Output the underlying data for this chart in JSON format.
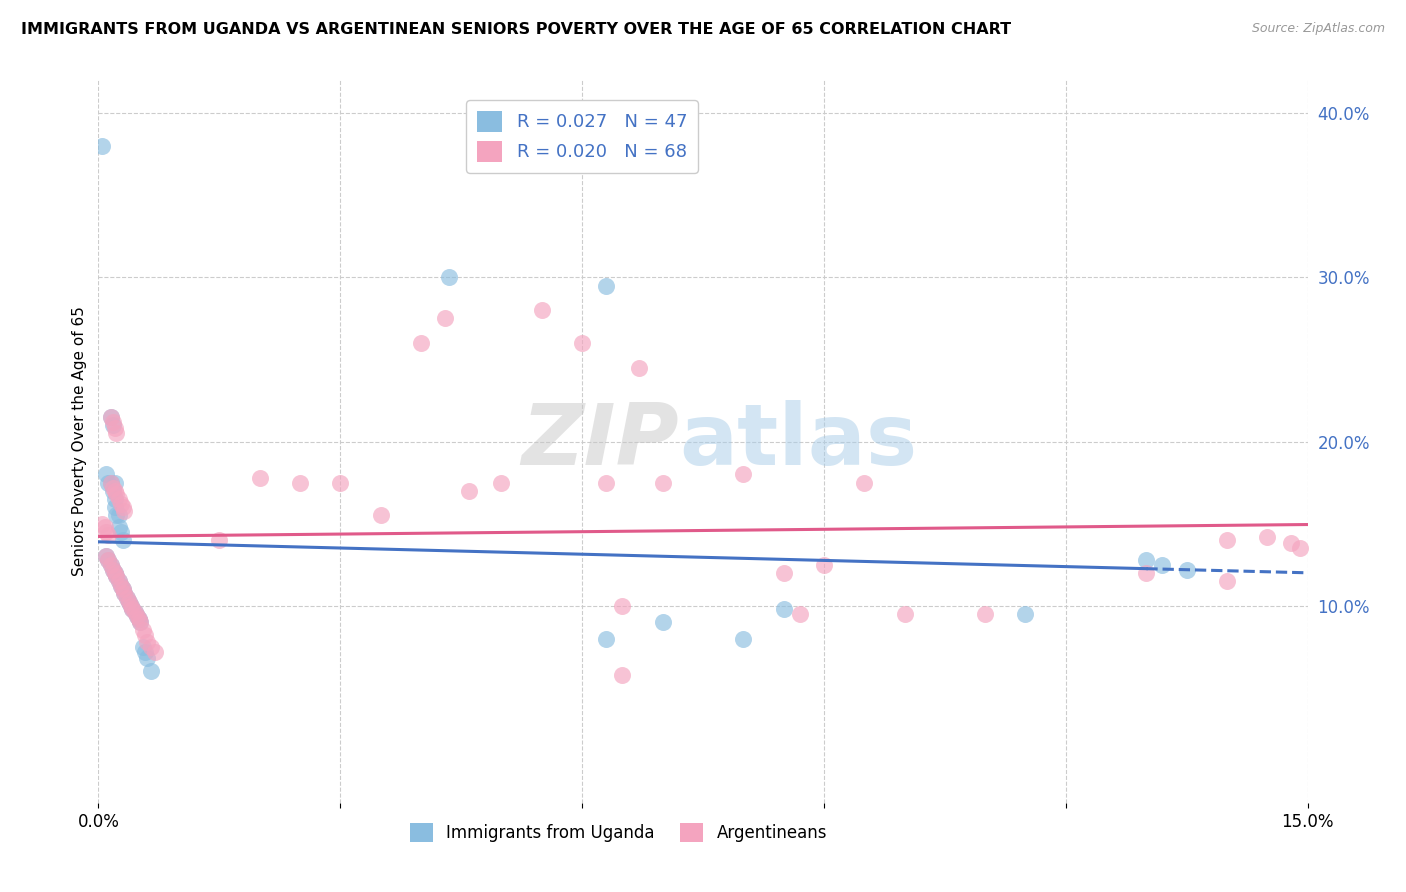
{
  "title": "IMMIGRANTS FROM UGANDA VS ARGENTINEAN SENIORS POVERTY OVER THE AGE OF 65 CORRELATION CHART",
  "source": "Source: ZipAtlas.com",
  "ylabel": "Seniors Poverty Over the Age of 65",
  "xlim": [
    0,
    0.15
  ],
  "ylim": [
    -0.02,
    0.42
  ],
  "xtick_positions": [
    0.0,
    0.03,
    0.06,
    0.09,
    0.12,
    0.15
  ],
  "xtick_labels": [
    "0.0%",
    "",
    "",
    "",
    "",
    "15.0%"
  ],
  "yticks_right": [
    0.1,
    0.2,
    0.3,
    0.4
  ],
  "ytick_right_labels": [
    "10.0%",
    "20.0%",
    "30.0%",
    "40.0%"
  ],
  "legend_r1": "R = 0.027",
  "legend_n1": "N = 47",
  "legend_r2": "R = 0.020",
  "legend_n2": "N = 68",
  "color_blue": "#8abde0",
  "color_pink": "#f4a4bf",
  "color_blue_line": "#4472c4",
  "color_pink_line": "#e05a8a",
  "watermark_zip": "ZIP",
  "watermark_atlas": "atlas",
  "scatter_blue": [
    [
      0.0005,
      0.38
    ],
    [
      0.001,
      0.18
    ],
    [
      0.0012,
      0.175
    ],
    [
      0.0015,
      0.215
    ],
    [
      0.0018,
      0.21
    ],
    [
      0.0015,
      0.175
    ],
    [
      0.0018,
      0.17
    ],
    [
      0.002,
      0.175
    ],
    [
      0.002,
      0.165
    ],
    [
      0.002,
      0.16
    ],
    [
      0.0022,
      0.155
    ],
    [
      0.0025,
      0.155
    ],
    [
      0.0025,
      0.148
    ],
    [
      0.0028,
      0.145
    ],
    [
      0.003,
      0.14
    ],
    [
      0.001,
      0.13
    ],
    [
      0.0012,
      0.128
    ],
    [
      0.0015,
      0.125
    ],
    [
      0.0018,
      0.122
    ],
    [
      0.002,
      0.12
    ],
    [
      0.0022,
      0.118
    ],
    [
      0.0025,
      0.115
    ],
    [
      0.0028,
      0.112
    ],
    [
      0.003,
      0.11
    ],
    [
      0.0032,
      0.108
    ],
    [
      0.0035,
      0.105
    ],
    [
      0.0038,
      0.102
    ],
    [
      0.004,
      0.1
    ],
    [
      0.0042,
      0.098
    ],
    [
      0.0045,
      0.096
    ],
    [
      0.0048,
      0.094
    ],
    [
      0.005,
      0.092
    ],
    [
      0.0052,
      0.09
    ],
    [
      0.0055,
      0.075
    ],
    [
      0.0058,
      0.072
    ],
    [
      0.006,
      0.068
    ],
    [
      0.0065,
      0.06
    ],
    [
      0.0435,
      0.3
    ],
    [
      0.063,
      0.295
    ],
    [
      0.063,
      0.08
    ],
    [
      0.07,
      0.09
    ],
    [
      0.08,
      0.08
    ],
    [
      0.085,
      0.098
    ],
    [
      0.115,
      0.095
    ],
    [
      0.13,
      0.128
    ],
    [
      0.132,
      0.125
    ],
    [
      0.135,
      0.122
    ]
  ],
  "scatter_pink": [
    [
      0.0005,
      0.15
    ],
    [
      0.0008,
      0.148
    ],
    [
      0.001,
      0.145
    ],
    [
      0.0012,
      0.143
    ],
    [
      0.0015,
      0.215
    ],
    [
      0.0018,
      0.212
    ],
    [
      0.002,
      0.208
    ],
    [
      0.0022,
      0.205
    ],
    [
      0.0015,
      0.175
    ],
    [
      0.0018,
      0.172
    ],
    [
      0.002,
      0.17
    ],
    [
      0.0022,
      0.168
    ],
    [
      0.0025,
      0.165
    ],
    [
      0.0028,
      0.162
    ],
    [
      0.003,
      0.16
    ],
    [
      0.0032,
      0.158
    ],
    [
      0.001,
      0.13
    ],
    [
      0.0012,
      0.128
    ],
    [
      0.0015,
      0.125
    ],
    [
      0.0018,
      0.122
    ],
    [
      0.002,
      0.12
    ],
    [
      0.0022,
      0.118
    ],
    [
      0.0025,
      0.115
    ],
    [
      0.0028,
      0.112
    ],
    [
      0.003,
      0.11
    ],
    [
      0.0032,
      0.108
    ],
    [
      0.0035,
      0.105
    ],
    [
      0.0038,
      0.102
    ],
    [
      0.004,
      0.1
    ],
    [
      0.0042,
      0.098
    ],
    [
      0.0045,
      0.096
    ],
    [
      0.0048,
      0.094
    ],
    [
      0.005,
      0.092
    ],
    [
      0.0052,
      0.09
    ],
    [
      0.0055,
      0.085
    ],
    [
      0.0058,
      0.082
    ],
    [
      0.006,
      0.078
    ],
    [
      0.0065,
      0.075
    ],
    [
      0.007,
      0.072
    ],
    [
      0.015,
      0.14
    ],
    [
      0.02,
      0.178
    ],
    [
      0.025,
      0.175
    ],
    [
      0.03,
      0.175
    ],
    [
      0.035,
      0.155
    ],
    [
      0.04,
      0.26
    ],
    [
      0.043,
      0.275
    ],
    [
      0.046,
      0.17
    ],
    [
      0.05,
      0.175
    ],
    [
      0.055,
      0.28
    ],
    [
      0.06,
      0.26
    ],
    [
      0.063,
      0.175
    ],
    [
      0.065,
      0.1
    ],
    [
      0.065,
      0.058
    ],
    [
      0.067,
      0.245
    ],
    [
      0.07,
      0.175
    ],
    [
      0.08,
      0.18
    ],
    [
      0.085,
      0.12
    ],
    [
      0.087,
      0.095
    ],
    [
      0.09,
      0.125
    ],
    [
      0.095,
      0.175
    ],
    [
      0.1,
      0.095
    ],
    [
      0.11,
      0.095
    ],
    [
      0.13,
      0.12
    ],
    [
      0.14,
      0.14
    ],
    [
      0.14,
      0.115
    ],
    [
      0.145,
      0.142
    ],
    [
      0.148,
      0.138
    ],
    [
      0.149,
      0.135
    ]
  ]
}
